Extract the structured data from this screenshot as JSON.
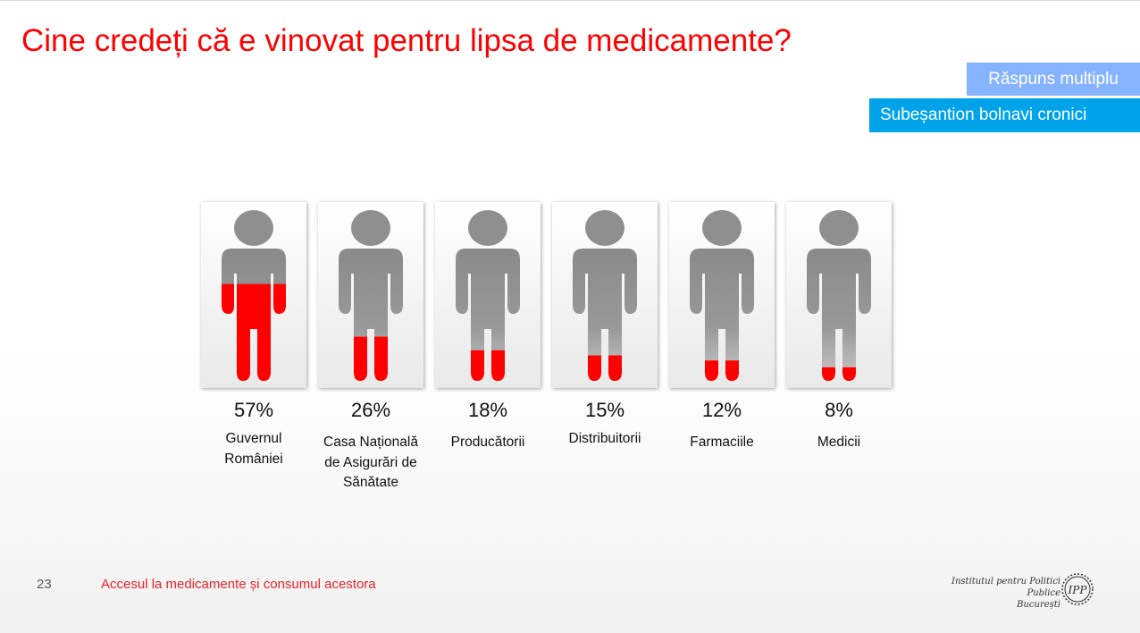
{
  "title": "Cine credeți că e vinovat pentru lipsa de medicamente?",
  "badges": {
    "multiple": "Răspuns multiplu",
    "subsample": "Subeșantion bolnavi cronici"
  },
  "chart_data": {
    "type": "bar",
    "categories": [
      "Guvernul\nRomâniei",
      "Casa Națională\nde Asigurări de\nSănătate",
      "Producătorii",
      "Distribuitorii",
      "Farmaciile",
      "Medicii"
    ],
    "values": [
      57,
      26,
      18,
      15,
      12,
      8
    ],
    "value_labels": [
      "57%",
      "26%",
      "18%",
      "15%",
      "12%",
      "8%"
    ],
    "unit": "%",
    "ylim": [
      0,
      100
    ],
    "colors": {
      "fill": "#ff0000",
      "figure": "#8c8c8c"
    }
  },
  "footer": {
    "page_number": "23",
    "text": "Accesul la medicamente și consumul acestora",
    "org_line1": "Institutul pentru Politici Publice",
    "org_line2": "București",
    "logo_text": "IPP"
  }
}
